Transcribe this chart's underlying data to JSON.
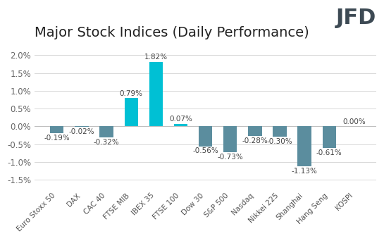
{
  "title": "Major Stock Indices (Daily Performance)",
  "categories": [
    "Euro Stoxx 50",
    "DAX",
    "CAC 40",
    "FTSE MIB",
    "IBEX 35",
    "FTSE 100",
    "Dow 30",
    "S&P 500",
    "Nasdaq",
    "Nikkei 225",
    "Shanghai",
    "Hang Seng",
    "KOSPI"
  ],
  "values": [
    -0.19,
    -0.02,
    -0.32,
    0.79,
    1.82,
    0.07,
    -0.56,
    -0.73,
    -0.28,
    -0.3,
    -1.13,
    -0.61,
    0.0
  ],
  "bar_colors": [
    "#5b8d9e",
    "#5b8d9e",
    "#5b8d9e",
    "#00c0d4",
    "#00c0d4",
    "#00c0d4",
    "#5b8d9e",
    "#5b8d9e",
    "#5b8d9e",
    "#5b8d9e",
    "#5b8d9e",
    "#5b8d9e",
    "#5b8d9e"
  ],
  "ylim": [
    -1.75,
    2.3
  ],
  "yticks": [
    -1.5,
    -1.0,
    -0.5,
    0.0,
    0.5,
    1.0,
    1.5,
    2.0
  ],
  "ytick_labels": [
    "-1.5%",
    "-1.0%",
    "-0.5%",
    "0.0%",
    "0.5%",
    "1.0%",
    "1.5%",
    "2.0%"
  ],
  "background_color": "#ffffff",
  "grid_color": "#d8d8d8",
  "bar_width": 0.55,
  "title_fontsize": 14,
  "label_fontsize": 7.5,
  "tick_fontsize": 8.5,
  "value_fontsize": 7.5,
  "logo_text": "JFD",
  "logo_color": "#3d4a54"
}
